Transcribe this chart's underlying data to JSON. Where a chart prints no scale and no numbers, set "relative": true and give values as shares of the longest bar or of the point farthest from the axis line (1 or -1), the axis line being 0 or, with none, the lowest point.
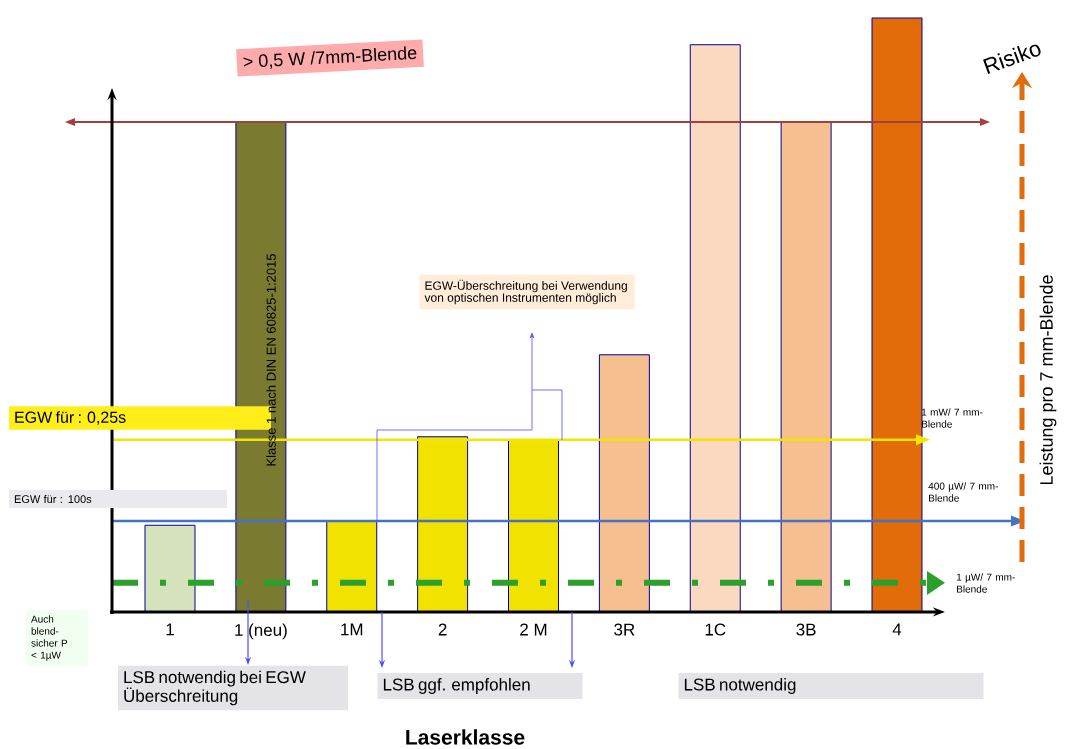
{
  "chart_data": {
    "type": "bar",
    "relative": true,
    "xlabel": "Laserklasse",
    "categories": [
      "1",
      "1 (neu)",
      "1M",
      "2",
      "2 M",
      "3R",
      "1C",
      "3B",
      "4"
    ],
    "values": [
      0.146,
      0.825,
      0.153,
      0.295,
      0.29,
      0.433,
      0.955,
      0.825,
      1
    ],
    "colors": [
      "#d6e2bb",
      "#7a7a30",
      "#f2e200",
      "#f2e200",
      "#f2e200",
      "#f5bf90",
      "#fad9c0",
      "#f5bf90",
      "#e36c0a"
    ],
    "ref_lines": [
      {
        "axis": "y",
        "value": 0.825,
        "label": "> 0,5 W /7mm-Blende",
        "color": "#a0413c"
      },
      {
        "axis": "y",
        "value": 0.29,
        "label": "1 mW/ 7 mm-Blende",
        "color": "#f2e600"
      },
      {
        "axis": "y",
        "value": 0.153,
        "label": "400 µW/ 7 mm-Blende",
        "color": "#4472c4"
      },
      {
        "axis": "y",
        "value": 0.049,
        "label": "1 µW/ 7 mm-Blende",
        "color": "#2ca02c",
        "line_style": "dashed"
      }
    ],
    "annotations": [
      "EGW für : 0,25s",
      "EGW für : 100s",
      "Klasse 1 nach DIN EN 60825-1:2015",
      "EGW-Überschreitung bei Verwendung von optischen Instrumenten möglich",
      "Risiko",
      "Auch blend-sicher P < 1µW",
      "LSB notwendig bei EGW Überschreitung",
      "LSB ggf. empfohlen",
      "LSB notwendig",
      "Leistung pro 7 mm-Blende"
    ],
    "grid": false
  }
}
